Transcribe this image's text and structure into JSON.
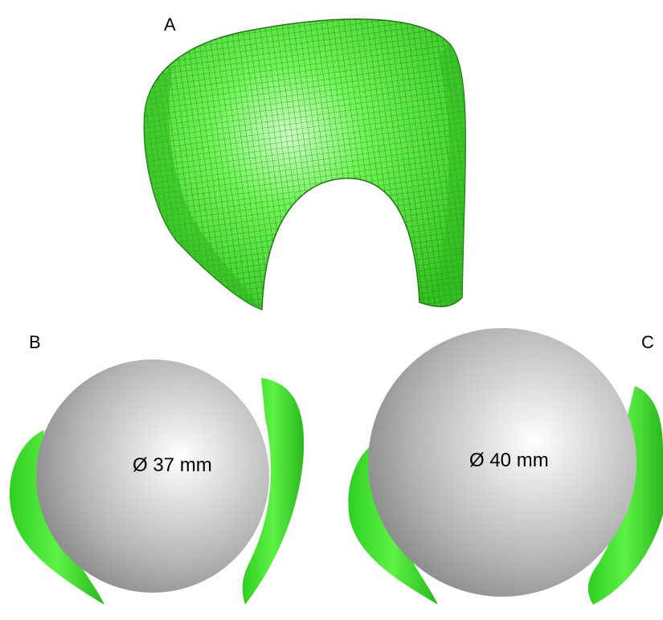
{
  "panels": [
    {
      "label": "A"
    },
    {
      "label": "B",
      "annotation": "Ø 37 mm"
    },
    {
      "label": "C",
      "annotation": "Ø 40 mm"
    }
  ]
}
